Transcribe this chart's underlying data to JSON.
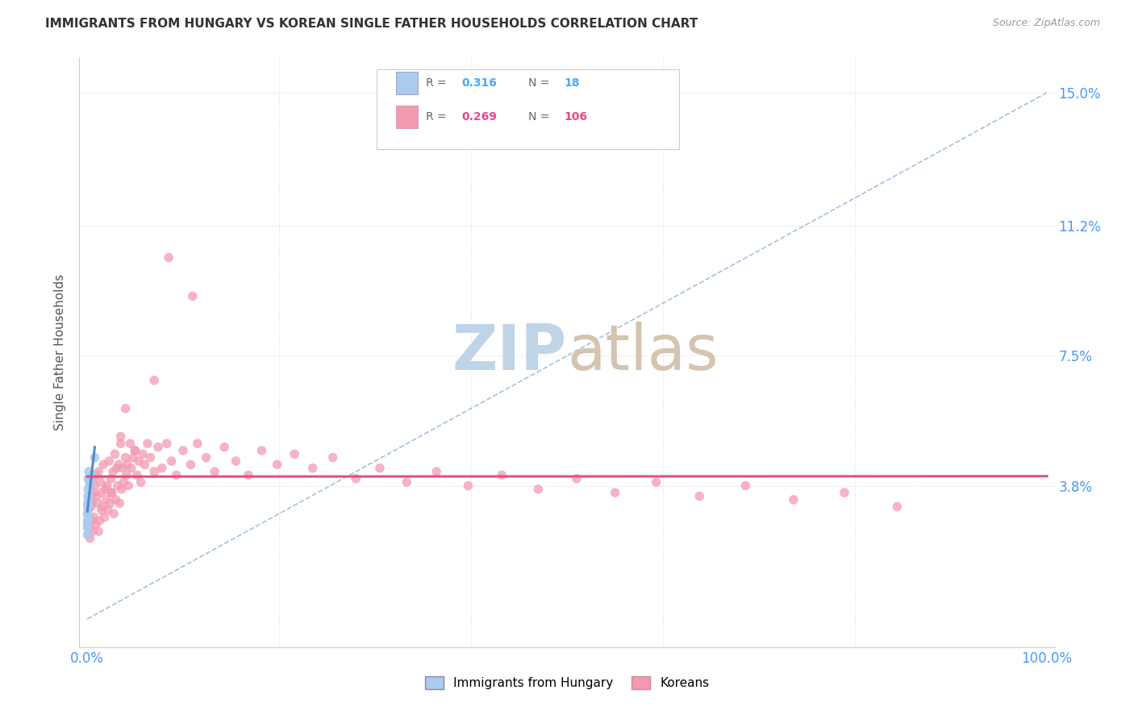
{
  "title": "IMMIGRANTS FROM HUNGARY VS KOREAN SINGLE FATHER HOUSEHOLDS CORRELATION CHART",
  "source": "Source: ZipAtlas.com",
  "ylabel": "Single Father Households",
  "legend_label_blue": "Immigrants from Hungary",
  "legend_label_pink": "Koreans",
  "blue_color": "#aaccee",
  "pink_color": "#f49ab0",
  "trendline_blue_color": "#5588cc",
  "trendline_pink_color": "#e05080",
  "diagonal_color": "#99bbdd",
  "axis_label_color": "#4499ff",
  "title_color": "#333333",
  "source_color": "#999999",
  "grid_color": "#dddddd",
  "legend_R_blue_color": "#44aaff",
  "legend_N_blue_color": "#44aaff",
  "legend_R_pink_color": "#ee4488",
  "legend_N_pink_color": "#ee4488",
  "watermark_zip_color": "#c0d4e8",
  "watermark_atlas_color": "#d4c4b0",
  "blue_x": [
    0.0003,
    0.0004,
    0.0005,
    0.0005,
    0.0006,
    0.0007,
    0.0008,
    0.0009,
    0.001,
    0.0011,
    0.0012,
    0.0015,
    0.0018,
    0.002,
    0.0025,
    0.003,
    0.005,
    0.008
  ],
  "blue_y": [
    0.026,
    0.03,
    0.024,
    0.028,
    0.033,
    0.027,
    0.035,
    0.032,
    0.037,
    0.029,
    0.04,
    0.033,
    0.035,
    0.042,
    0.039,
    0.038,
    0.041,
    0.046
  ],
  "pink_x": [
    0.001,
    0.001,
    0.001,
    0.002,
    0.002,
    0.002,
    0.003,
    0.003,
    0.004,
    0.004,
    0.005,
    0.005,
    0.006,
    0.006,
    0.007,
    0.007,
    0.008,
    0.009,
    0.009,
    0.01,
    0.011,
    0.012,
    0.013,
    0.014,
    0.015,
    0.016,
    0.017,
    0.018,
    0.019,
    0.02,
    0.021,
    0.022,
    0.023,
    0.024,
    0.025,
    0.026,
    0.027,
    0.028,
    0.029,
    0.03,
    0.031,
    0.032,
    0.033,
    0.034,
    0.035,
    0.036,
    0.037,
    0.038,
    0.04,
    0.041,
    0.042,
    0.043,
    0.045,
    0.046,
    0.048,
    0.05,
    0.052,
    0.054,
    0.056,
    0.058,
    0.06,
    0.063,
    0.066,
    0.07,
    0.074,
    0.078,
    0.083,
    0.088,
    0.093,
    0.1,
    0.108,
    0.115,
    0.124,
    0.133,
    0.143,
    0.155,
    0.168,
    0.182,
    0.198,
    0.216,
    0.235,
    0.256,
    0.28,
    0.305,
    0.333,
    0.364,
    0.397,
    0.432,
    0.47,
    0.51,
    0.55,
    0.593,
    0.638,
    0.686,
    0.736,
    0.789,
    0.844,
    0.05,
    0.025,
    0.015,
    0.012,
    0.035,
    0.07,
    0.04,
    0.085,
    0.11
  ],
  "pink_y": [
    0.031,
    0.027,
    0.024,
    0.034,
    0.029,
    0.026,
    0.038,
    0.023,
    0.035,
    0.032,
    0.033,
    0.028,
    0.04,
    0.025,
    0.036,
    0.029,
    0.038,
    0.041,
    0.027,
    0.035,
    0.033,
    0.042,
    0.028,
    0.039,
    0.036,
    0.032,
    0.044,
    0.029,
    0.037,
    0.034,
    0.038,
    0.031,
    0.045,
    0.033,
    0.04,
    0.036,
    0.042,
    0.03,
    0.047,
    0.034,
    0.043,
    0.038,
    0.044,
    0.033,
    0.05,
    0.037,
    0.043,
    0.039,
    0.046,
    0.041,
    0.044,
    0.038,
    0.05,
    0.043,
    0.046,
    0.048,
    0.041,
    0.045,
    0.039,
    0.047,
    0.044,
    0.05,
    0.046,
    0.042,
    0.049,
    0.043,
    0.05,
    0.045,
    0.041,
    0.048,
    0.044,
    0.05,
    0.046,
    0.042,
    0.049,
    0.045,
    0.041,
    0.048,
    0.044,
    0.047,
    0.043,
    0.046,
    0.04,
    0.043,
    0.039,
    0.042,
    0.038,
    0.041,
    0.037,
    0.04,
    0.036,
    0.039,
    0.035,
    0.038,
    0.034,
    0.036,
    0.032,
    0.048,
    0.036,
    0.031,
    0.025,
    0.052,
    0.068,
    0.06,
    0.103,
    0.092
  ]
}
